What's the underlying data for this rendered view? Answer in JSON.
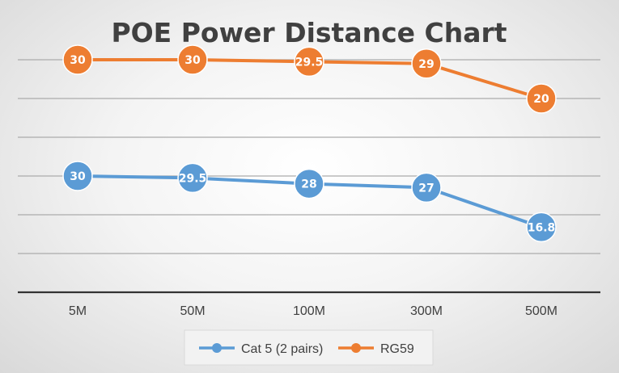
{
  "chart_data": {
    "type": "line",
    "title": "POE Power Distance Chart",
    "categories": [
      "5M",
      "50M",
      "100M",
      "300M",
      "500M"
    ],
    "series": [
      {
        "name": "Cat 5 (2 pairs)",
        "color": "#5b9bd5",
        "values": [
          30,
          29.5,
          28,
          27,
          16.8
        ],
        "labels": [
          "30",
          "29.5",
          "28",
          "27",
          "16.8"
        ]
      },
      {
        "name": "RG59",
        "color": "#ed7d31",
        "values": [
          30,
          30,
          29.5,
          29,
          20
        ],
        "labels": [
          "30",
          "30",
          "29.5",
          "29",
          "20"
        ]
      }
    ],
    "series_offset": {
      "Cat 5 (2 pairs)": 0,
      "RG59": 30
    },
    "ylim": [
      0,
      65
    ],
    "grid": true,
    "legend_position": "bottom",
    "stacked": true
  }
}
